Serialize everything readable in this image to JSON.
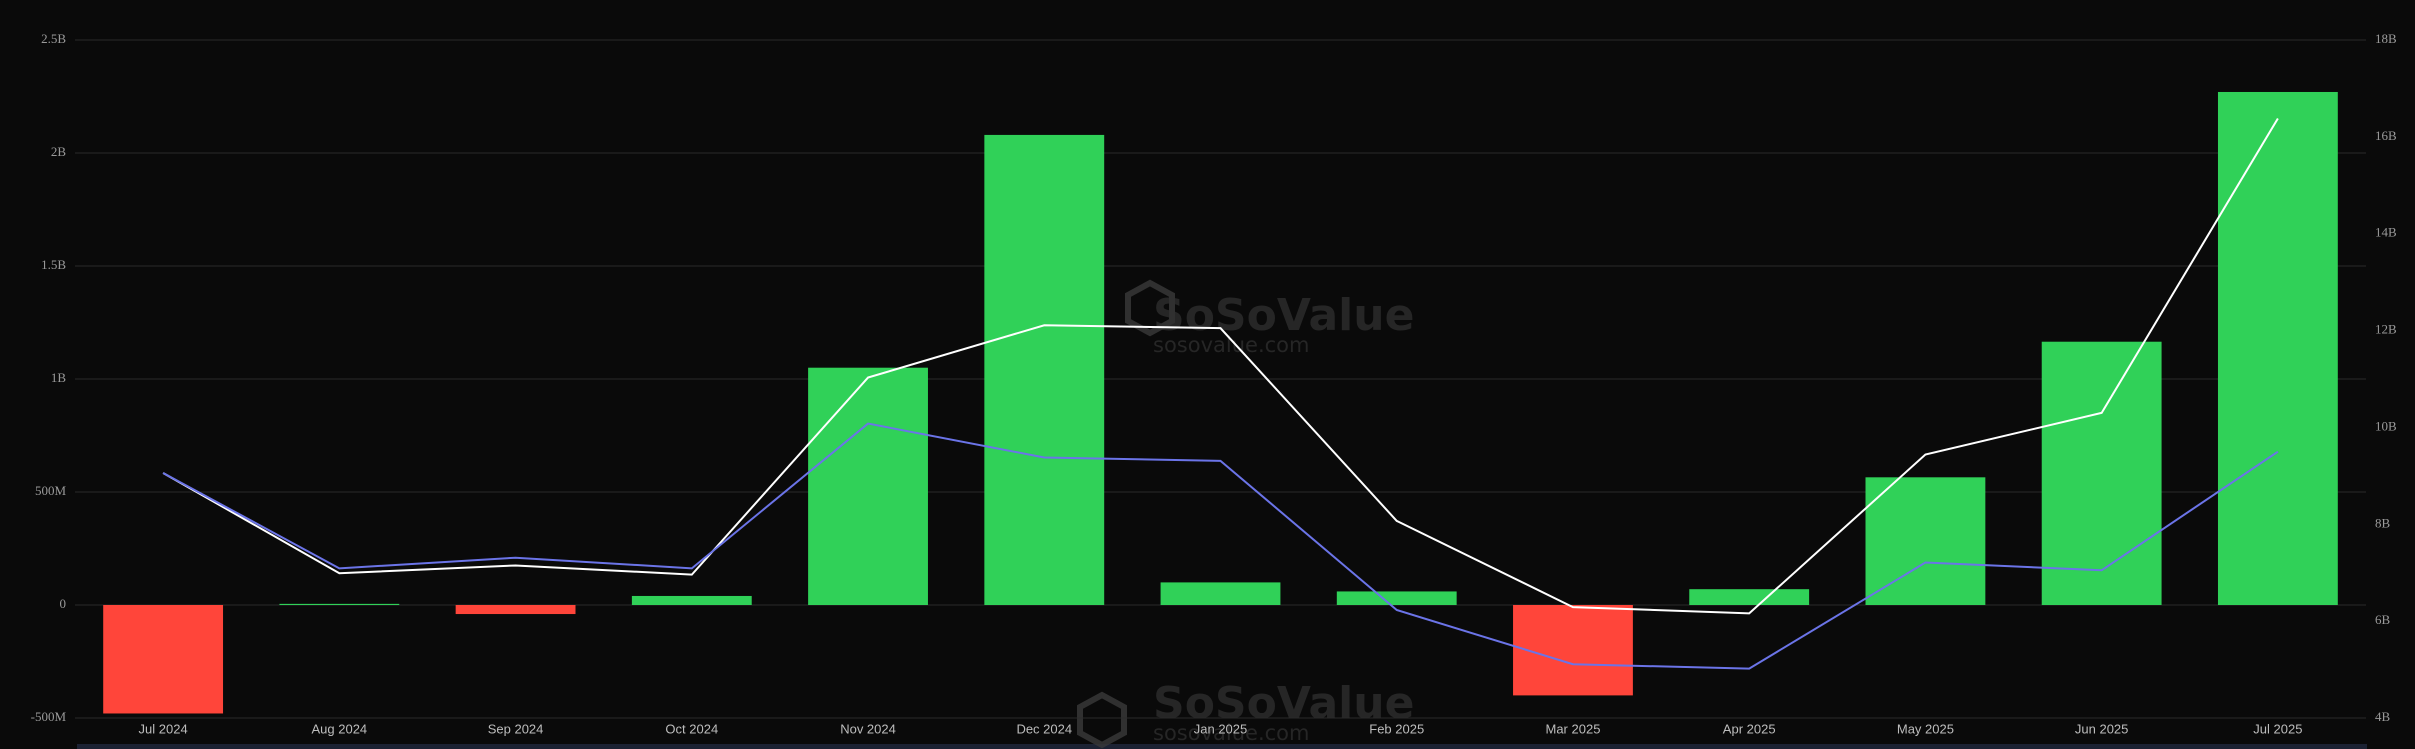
{
  "chart_data": {
    "type": "bar",
    "categories": [
      "Jul 2024",
      "Aug 2024",
      "Sep 2024",
      "Oct 2024",
      "Nov 2024",
      "Dec 2024",
      "Jan 2025",
      "Feb 2025",
      "Mar 2025",
      "Apr 2025",
      "May 2025",
      "Jun 2025",
      "Jul 2025"
    ],
    "series": [
      {
        "type": "bar",
        "color": "#30d158",
        "negative_color": "#ff453a",
        "values": [
          -480000000,
          5000000,
          -40000000,
          40000000,
          1050000000,
          2080000000,
          100000000,
          60000000,
          -400000000,
          70000000,
          565000000,
          1165000000,
          2270000000
        ]
      },
      {
        "type": "line",
        "axis": "y2",
        "color": "#ffffff",
        "values": [
          9060000000,
          6990000000,
          7150000000,
          6960000000,
          11030000000,
          12110000000,
          12050000000,
          8070000000,
          6290000000,
          6160000000,
          9440000000,
          10300000000,
          16380000000
        ]
      },
      {
        "type": "line",
        "axis": "y2",
        "color": "#6b74e8",
        "values": [
          9060000000,
          7090000000,
          7310000000,
          7090000000,
          10080000000,
          9380000000,
          9310000000,
          6230000000,
          5110000000,
          5020000000,
          7210000000,
          7050000000,
          9500000000
        ]
      }
    ],
    "ylim": [
      -500000000,
      2500000000
    ],
    "yticks": [
      {
        "value": -500000000,
        "label": "-500M"
      },
      0,
      {
        "value": 500000000,
        "label": "500M"
      },
      {
        "value": 1000000000,
        "label": "1B"
      },
      {
        "value": 1500000000,
        "label": "1.5B"
      },
      {
        "value": 2000000000,
        "label": "2B"
      },
      {
        "value": 2500000000,
        "label": "2.5B"
      }
    ],
    "y2lim": [
      4000000000,
      18000000000
    ],
    "y2ticks": [
      {
        "value": 4000000000,
        "label": "4B"
      },
      {
        "value": 6000000000,
        "label": "6B"
      },
      {
        "value": 8000000000,
        "label": "8B"
      },
      {
        "value": 10000000000,
        "label": "10B"
      },
      {
        "value": 12000000000,
        "label": "12B"
      },
      {
        "value": 14000000000,
        "label": "14B"
      },
      {
        "value": 16000000000,
        "label": "16B"
      },
      {
        "value": 18000000000,
        "label": "18B"
      }
    ],
    "grid": true,
    "watermark": {
      "brand": "SoSoValue",
      "site": "sosovalue.com"
    }
  }
}
